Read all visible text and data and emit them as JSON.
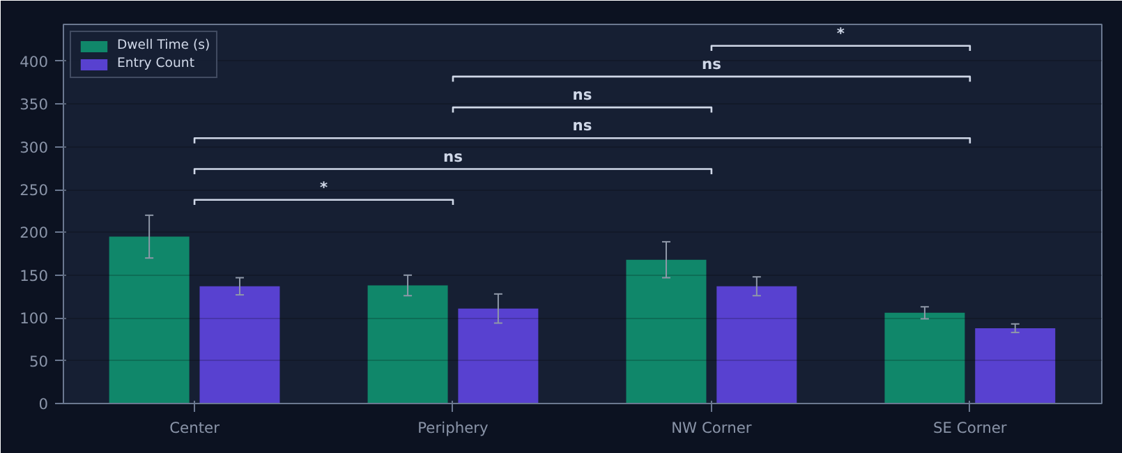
{
  "chart_data": {
    "type": "bar",
    "categories": [
      "Center",
      "Periphery",
      "NW Corner",
      "SE Corner"
    ],
    "series": [
      {
        "name": "Dwell Time (s)",
        "color": "#10876a",
        "values": [
          195,
          138,
          168,
          106
        ],
        "errors": [
          25,
          12,
          21,
          7
        ]
      },
      {
        "name": "Entry Count",
        "color": "#5841d0",
        "values": [
          137,
          111,
          137,
          88
        ],
        "errors": [
          10,
          17,
          11,
          5
        ]
      }
    ],
    "ylim": [
      0,
      443
    ],
    "yticks": [
      0,
      50,
      100,
      150,
      200,
      250,
      300,
      350,
      400
    ],
    "grid": "y",
    "legend": "top left",
    "annotations": [
      "*",
      "ns",
      "ns",
      "ns",
      "ns",
      "*"
    ]
  }
}
